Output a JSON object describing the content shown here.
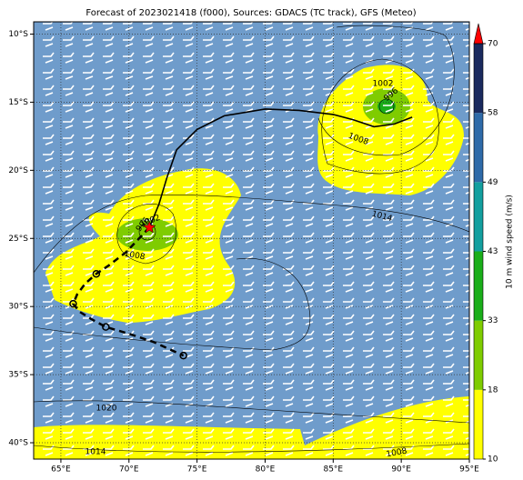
{
  "chart_data": {
    "type": "map",
    "title": "Forecast of 2023021418 (f000), Sources: GDACS (TC track), GFS (Meteo)",
    "xlim": [
      63,
      95
    ],
    "ylim": [
      -41.2,
      -9.1
    ],
    "xticks": [
      {
        "value": 65,
        "label": "65°E"
      },
      {
        "value": 70,
        "label": "70°E"
      },
      {
        "value": 75,
        "label": "75°E"
      },
      {
        "value": 80,
        "label": "80°E"
      },
      {
        "value": 85,
        "label": "85°E"
      },
      {
        "value": 90,
        "label": "90°E"
      },
      {
        "value": 95,
        "label": "95°E"
      }
    ],
    "yticks": [
      {
        "value": -10,
        "label": "10°S"
      },
      {
        "value": -15,
        "label": "15°S"
      },
      {
        "value": -20,
        "label": "20°S"
      },
      {
        "value": -25,
        "label": "25°S"
      },
      {
        "value": -30,
        "label": "30°S"
      },
      {
        "value": -35,
        "label": "35°S"
      },
      {
        "value": -40,
        "label": "40°S"
      }
    ],
    "grid": true,
    "colorbar": {
      "label": "10 m wind speed (m/s)",
      "ticks": [
        10,
        18,
        33,
        43,
        49,
        58,
        70
      ],
      "colors": [
        "#ffff00",
        "#7fcc00",
        "#1aae1a",
        "#139f9f",
        "#2e6aa8",
        "#1a2a5e"
      ],
      "extend_color": "#ff0000"
    },
    "isobar_labels": [
      1002,
      1008,
      1014,
      1002,
      1008,
      996,
      996,
      1020,
      1014,
      1008
    ],
    "tracks": [
      {
        "x": [
          71.5,
          72.2,
          72.8,
          73.5,
          75,
          77,
          80,
          82.5,
          85,
          86.5,
          88,
          89.5,
          90.8
        ],
        "y": [
          -24.2,
          -22.5,
          -20.5,
          -18.5,
          -17,
          -16,
          -15.5,
          -15.6,
          -15.9,
          -16.3,
          -16.8,
          -16.6,
          -16.1
        ],
        "color": "#000000",
        "dashed": false
      },
      {
        "x": [
          71.5,
          69.8,
          68.5,
          67.6,
          66.8,
          66.2,
          65.9,
          66.4,
          67.2,
          68.3,
          70,
          71.8,
          74
        ],
        "y": [
          -24.2,
          -26,
          -27,
          -27.6,
          -28.3,
          -29.1,
          -29.8,
          -30.4,
          -30.9,
          -31.5,
          -32,
          -32.6,
          -33.6
        ],
        "color": "#000000",
        "dashed": true
      }
    ],
    "storm_position": {
      "x": 71.5,
      "y": -24.2,
      "color": "#ff0000"
    }
  }
}
